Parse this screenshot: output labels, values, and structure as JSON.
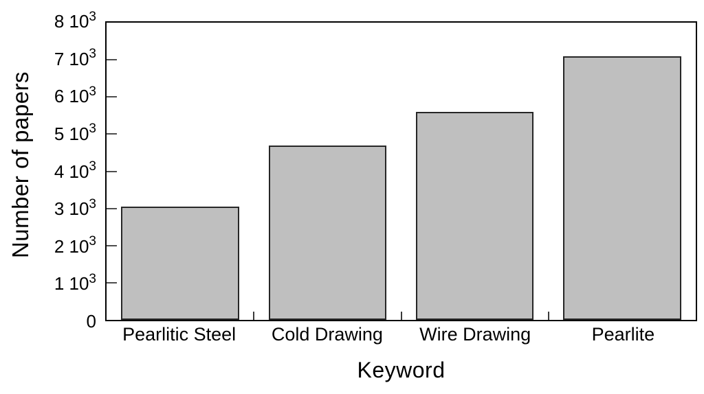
{
  "chart_data": {
    "type": "bar",
    "title": "",
    "categories": [
      "Pearlitic Steel",
      "Cold Drawing",
      "Wire Drawing",
      "Pearlite"
    ],
    "values": [
      3050,
      4700,
      5600,
      7100
    ],
    "xlabel": "Keyword",
    "ylabel": "Number of papers",
    "ylim": [
      0,
      8000
    ],
    "y_tick_step": 1000,
    "y_ticks": [
      {
        "value": 0,
        "base": "0",
        "sup": ""
      },
      {
        "value": 1000,
        "base": "1 10",
        "sup": "3"
      },
      {
        "value": 2000,
        "base": "2 10",
        "sup": "3"
      },
      {
        "value": 3000,
        "base": "3 10",
        "sup": "3"
      },
      {
        "value": 4000,
        "base": "4 10",
        "sup": "3"
      },
      {
        "value": 5000,
        "base": "5 10",
        "sup": "3"
      },
      {
        "value": 6000,
        "base": "6 10",
        "sup": "3"
      },
      {
        "value": 7000,
        "base": "7 10",
        "sup": "3"
      },
      {
        "value": 8000,
        "base": "8 10",
        "sup": "3"
      }
    ],
    "grid": false,
    "legend": false,
    "bar_width_fraction": 0.8,
    "colors": {
      "bar_fill": "#bfbfbf",
      "bar_border": "#262626",
      "axis": "#000000",
      "background": "#ffffff"
    }
  }
}
